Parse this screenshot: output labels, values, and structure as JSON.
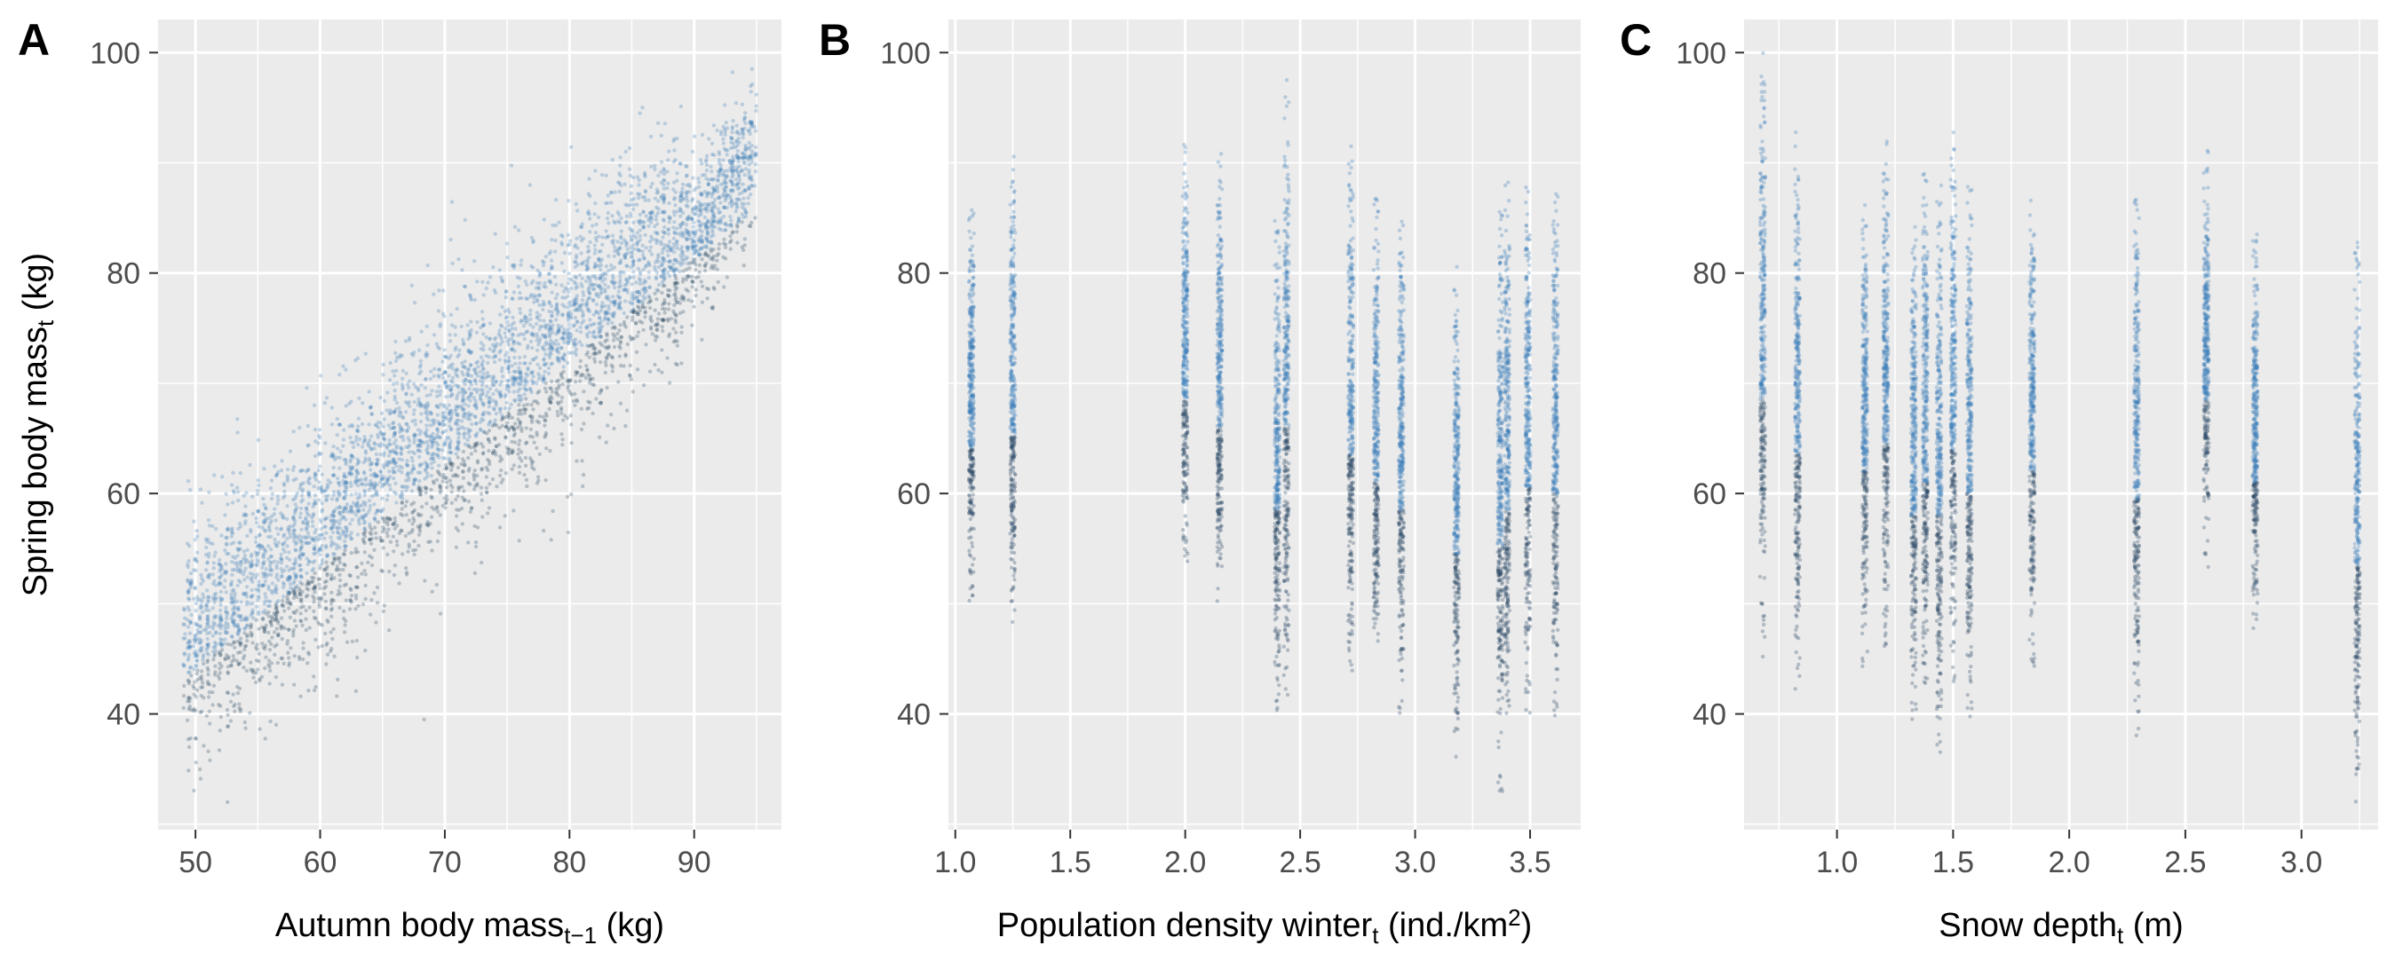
{
  "chart_data": [
    {
      "type": "scatter",
      "panel_label": "A",
      "xlabel": {
        "main": "Autumn body mass",
        "sub": "t−1",
        "sup": "",
        "tail": " (kg)"
      },
      "ylabel": {
        "main": "Spring body mass",
        "sub": "t",
        "sup": "",
        "tail": " (kg)"
      },
      "xlim": [
        47,
        97
      ],
      "ylim": [
        29.5,
        103
      ],
      "xticks": [
        50,
        60,
        70,
        80,
        90
      ],
      "yticks": [
        40,
        60,
        80,
        100
      ],
      "grid": true,
      "point_color": "#3d7fb8",
      "points_relation": "positive correlation, approx. spring = 0.93 × autumn + 0.5",
      "x_range_data": [
        49,
        95
      ],
      "y_range_data": [
        32,
        100
      ]
    },
    {
      "type": "scatter",
      "panel_label": "B",
      "xlabel": {
        "main": "Population density winter",
        "sub": "t",
        "sup": "2",
        "pre_sup": " (ind./km",
        "tail": ")"
      },
      "ylabel": {
        "main": "",
        "sub": "",
        "sup": "",
        "tail": ""
      },
      "xlim": [
        0.97,
        3.72
      ],
      "ylim": [
        29.5,
        103
      ],
      "xticks": [
        1.0,
        1.5,
        2.0,
        2.5,
        3.0,
        3.5
      ],
      "yticks": [
        40,
        60,
        80,
        100
      ],
      "grid": true,
      "point_color": "#3d7fb8",
      "columns": [
        {
          "x": 1.07,
          "ymin": 50,
          "ymax": 86
        },
        {
          "x": 1.25,
          "ymin": 47.5,
          "ymax": 91
        },
        {
          "x": 2.0,
          "ymin": 53,
          "ymax": 92
        },
        {
          "x": 2.15,
          "ymin": 49,
          "ymax": 91
        },
        {
          "x": 2.4,
          "ymin": 40,
          "ymax": 85
        },
        {
          "x": 2.44,
          "ymin": 41,
          "ymax": 99
        },
        {
          "x": 2.72,
          "ymin": 42,
          "ymax": 93
        },
        {
          "x": 2.83,
          "ymin": 43,
          "ymax": 87
        },
        {
          "x": 2.94,
          "ymin": 39,
          "ymax": 86
        },
        {
          "x": 3.18,
          "ymin": 36,
          "ymax": 81
        },
        {
          "x": 3.37,
          "ymin": 32.5,
          "ymax": 86
        },
        {
          "x": 3.4,
          "ymin": 36,
          "ymax": 89
        },
        {
          "x": 3.49,
          "ymin": 40,
          "ymax": 89
        },
        {
          "x": 3.61,
          "ymin": 39,
          "ymax": 89
        }
      ]
    },
    {
      "type": "scatter",
      "panel_label": "C",
      "xlabel": {
        "main": "Snow depth",
        "sub": "t",
        "sup": "",
        "tail": " (m)"
      },
      "ylabel": {
        "main": "",
        "sub": "",
        "sup": "",
        "tail": ""
      },
      "xlim": [
        0.6,
        3.33
      ],
      "ylim": [
        29.5,
        103
      ],
      "xticks": [
        1.0,
        1.5,
        2.0,
        2.5,
        3.0
      ],
      "yticks": [
        40,
        60,
        80,
        100
      ],
      "grid": true,
      "point_color": "#3d7fb8",
      "columns": [
        {
          "x": 0.68,
          "ymin": 45,
          "ymax": 100
        },
        {
          "x": 0.83,
          "ymin": 42,
          "ymax": 93
        },
        {
          "x": 1.12,
          "ymin": 44,
          "ymax": 88
        },
        {
          "x": 1.21,
          "ymin": 45,
          "ymax": 92
        },
        {
          "x": 1.33,
          "ymin": 39,
          "ymax": 85
        },
        {
          "x": 1.38,
          "ymin": 40,
          "ymax": 90
        },
        {
          "x": 1.44,
          "ymin": 35,
          "ymax": 89
        },
        {
          "x": 1.5,
          "ymin": 42,
          "ymax": 94
        },
        {
          "x": 1.57,
          "ymin": 39,
          "ymax": 89
        },
        {
          "x": 1.84,
          "ymin": 44,
          "ymax": 88
        },
        {
          "x": 2.29,
          "ymin": 38,
          "ymax": 89
        },
        {
          "x": 2.59,
          "ymin": 53,
          "ymax": 92
        },
        {
          "x": 2.8,
          "ymin": 46,
          "ymax": 84
        },
        {
          "x": 3.24,
          "ymin": 32,
          "ymax": 83
        }
      ]
    }
  ]
}
